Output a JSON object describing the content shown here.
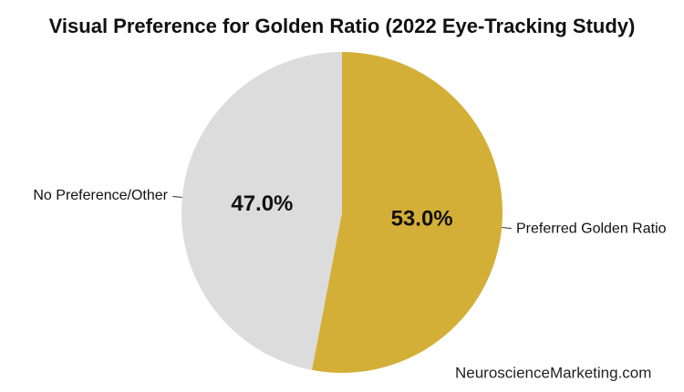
{
  "chart_data": {
    "type": "pie",
    "title": "Visual Preference for Golden Ratio (2022 Eye-Tracking Study)",
    "categories": [
      "Preferred Golden Ratio",
      "No Preference/Other"
    ],
    "values": [
      53.0,
      47.0
    ],
    "value_labels": [
      "53.0%",
      "47.0%"
    ],
    "colors": [
      "#d4af37",
      "#dcdcdc"
    ],
    "watermark": "NeuroscienceMarketing.com"
  }
}
